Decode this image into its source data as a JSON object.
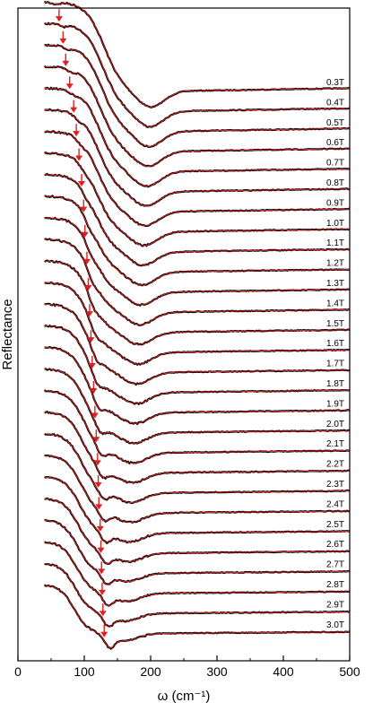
{
  "chart_data": {
    "type": "line",
    "xlabel": "ω (cm⁻¹)",
    "ylabel": "Reflectance",
    "xlim": [
      0,
      500
    ],
    "x_ticks": [
      0,
      100,
      200,
      300,
      400,
      500
    ],
    "y_ticks_shown": false,
    "grid": false,
    "legend": "none",
    "series_style": {
      "data_color": "#000000",
      "fit_color": "#e02020"
    },
    "arrow_color": "#e02020",
    "series": [
      {
        "name": "0.3T",
        "arrow_x": 48
      },
      {
        "name": "0.4T",
        "arrow_x": 62
      },
      {
        "name": "0.5T",
        "arrow_x": 68
      },
      {
        "name": "0.6T",
        "arrow_x": 72
      },
      {
        "name": "0.7T",
        "arrow_x": 78
      },
      {
        "name": "0.8T",
        "arrow_x": 84
      },
      {
        "name": "0.9T",
        "arrow_x": 88
      },
      {
        "name": "1.0T",
        "arrow_x": 92
      },
      {
        "name": "1.1T",
        "arrow_x": 96
      },
      {
        "name": "1.2T",
        "arrow_x": 99
      },
      {
        "name": "1.3T",
        "arrow_x": 101
      },
      {
        "name": "1.4T",
        "arrow_x": 104
      },
      {
        "name": "1.5T",
        "arrow_x": 106
      },
      {
        "name": "1.6T",
        "arrow_x": 108
      },
      {
        "name": "1.7T",
        "arrow_x": 110
      },
      {
        "name": "1.8T",
        "arrow_x": 112
      },
      {
        "name": "1.9T",
        "arrow_x": 114
      },
      {
        "name": "2.0T",
        "arrow_x": 116
      },
      {
        "name": "2.1T",
        "arrow_x": 118
      },
      {
        "name": "2.2T",
        "arrow_x": 120
      },
      {
        "name": "2.3T",
        "arrow_x": 121
      },
      {
        "name": "2.4T",
        "arrow_x": 122
      },
      {
        "name": "2.5T",
        "arrow_x": 124
      },
      {
        "name": "2.6T",
        "arrow_x": 125
      },
      {
        "name": "2.7T",
        "arrow_x": 126
      },
      {
        "name": "2.8T",
        "arrow_x": 127
      },
      {
        "name": "2.9T",
        "arrow_x": 128
      },
      {
        "name": "3.0T",
        "arrow_x": 130
      }
    ]
  }
}
